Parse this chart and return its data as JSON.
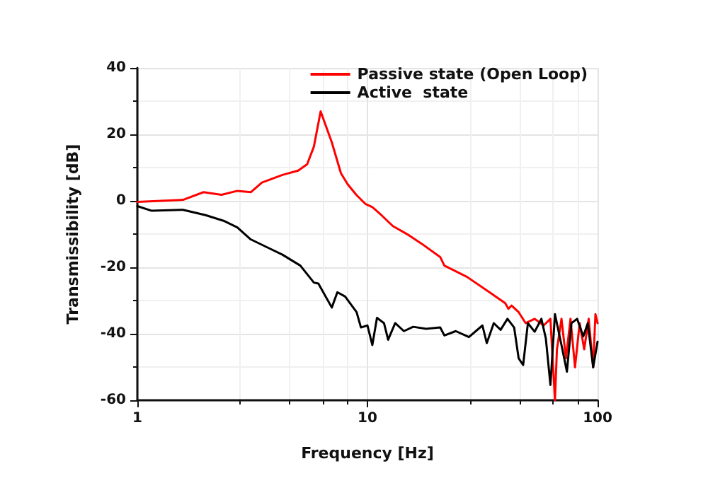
{
  "chart_data": {
    "type": "line",
    "xlabel": "Frequency [Hz]",
    "ylabel": "Transmissibility [dB]",
    "log": "x",
    "xlim": [
      1,
      100
    ],
    "xticks": [
      1,
      10,
      100
    ],
    "ylim": [
      -60,
      40
    ],
    "yticks": [
      -60,
      -40,
      -20,
      0,
      20,
      40
    ],
    "grid": true,
    "legend": "top right",
    "marker": "none",
    "line_style": "solid",
    "series": [
      {
        "name": "Passive state (Open Loop)",
        "color": "#ff0000",
        "x": [
          1,
          1.58,
          1.94,
          2.32,
          2.72,
          3.11,
          3.48,
          4.27,
          5.0,
          5.47,
          5.85,
          6.26,
          7.0,
          7.67,
          8.2,
          8.97,
          9.83,
          10.5,
          11.5,
          12.9,
          15.1,
          17.2,
          20.7,
          21.6,
          27.1,
          33.9,
          39.7,
          41.0,
          42.3,
          45.4,
          48.7,
          53.3,
          58.3,
          62.4,
          65.3,
          66.6,
          69.7,
          72.9,
          76.3,
          79.8,
          83.6,
          87.5,
          91.5,
          95.7,
          97.9,
          100
        ],
        "values": [
          -0.3,
          0.3,
          2.6,
          1.8,
          3.0,
          2.6,
          5.5,
          7.8,
          9.1,
          11,
          16.3,
          26.9,
          17.6,
          8.3,
          5.0,
          1.7,
          -1.0,
          -1.9,
          -4.3,
          -7.6,
          -10.3,
          -12.9,
          -16.9,
          -19.5,
          -22.9,
          -27.5,
          -30.8,
          -32.5,
          -31.5,
          -33.5,
          -36.8,
          -35.5,
          -37.5,
          -35.5,
          -60,
          -44.7,
          -35.5,
          -47.4,
          -35.5,
          -50.1,
          -36.8,
          -44.7,
          -35.5,
          -50.1,
          -34.1,
          -36.8
        ]
      },
      {
        "name": "Active  state",
        "color": "#000000",
        "x": [
          1,
          1.155,
          1.58,
          1.98,
          2.37,
          2.72,
          3.11,
          3.72,
          4.27,
          5.11,
          5.85,
          6.12,
          7.0,
          7.4,
          8.0,
          8.97,
          9.37,
          10.0,
          10.5,
          11.0,
          11.8,
          12.3,
          13.2,
          14.4,
          15.8,
          18.0,
          20.7,
          21.6,
          24.2,
          27.6,
          31.6,
          33.0,
          35.4,
          37.9,
          40.6,
          43.4,
          45.4,
          47.5,
          49.8,
          53.3,
          57.0,
          59.6,
          62.4,
          65.3,
          69.7,
          73.6,
          77.0,
          81.5,
          86.7,
          90.7,
          95.7,
          100
        ],
        "values": [
          -1.6,
          -3.0,
          -2.7,
          -4.3,
          -6.0,
          -8.0,
          -11.6,
          -14.2,
          -16.2,
          -19.5,
          -24.6,
          -24.9,
          -32.1,
          -27.5,
          -28.8,
          -33.5,
          -38.1,
          -37.5,
          -43.4,
          -35.2,
          -36.8,
          -41.8,
          -36.8,
          -39.2,
          -37.9,
          -38.5,
          -38.1,
          -40.5,
          -39.2,
          -41.0,
          -37.5,
          -42.8,
          -36.8,
          -38.8,
          -35.5,
          -38.1,
          -47.4,
          -49.4,
          -36.8,
          -39.4,
          -35.5,
          -41.4,
          -55.4,
          -34.1,
          -43.4,
          -51.4,
          -36.8,
          -35.5,
          -40.8,
          -36.8,
          -50.1,
          -42.4
        ]
      }
    ]
  }
}
